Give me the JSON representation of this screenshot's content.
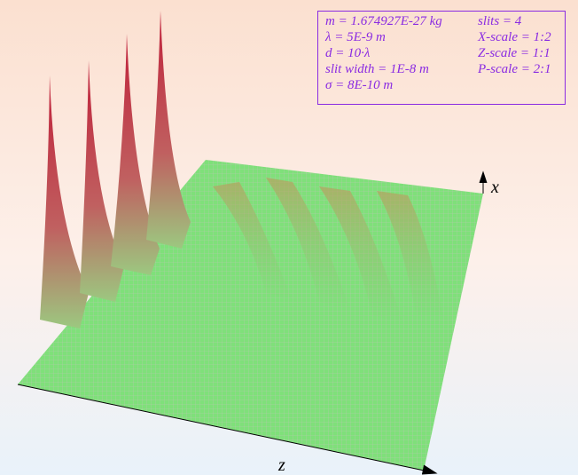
{
  "info": {
    "left": [
      "m = 1.674927E-27 kg",
      "λ = 5E-9 m",
      "d = 10·λ",
      "slit width = 1E-8 m",
      "σ = 8E-10 m"
    ],
    "right": [
      "slits = 4",
      "X-scale = 1:2",
      "Z-scale = 1:1",
      "P-scale = 2:1"
    ]
  },
  "axes": {
    "x": "x",
    "z": "z"
  }
}
